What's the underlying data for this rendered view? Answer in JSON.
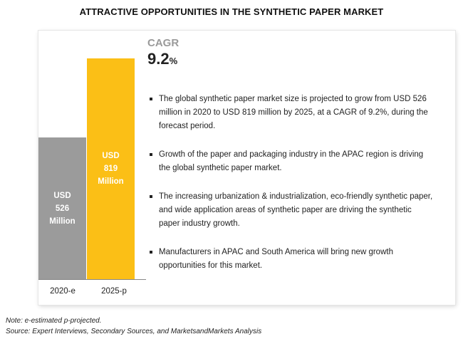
{
  "title": "ATTRACTIVE OPPORTUNITIES IN THE SYNTHETIC PAPER MARKET",
  "colors": {
    "bar_2020": "#9b9b9b",
    "bar_2025": "#fbbf16",
    "cagr_label": "#9a9a9a"
  },
  "cagr": {
    "label": "CAGR",
    "value": "9.2",
    "unit": "%"
  },
  "chart_data": {
    "type": "bar",
    "categories": [
      "2020-e",
      "2025-p"
    ],
    "values": [
      526,
      819
    ],
    "unit": "USD Million",
    "data_labels": [
      [
        "USD",
        "526",
        "Million"
      ],
      [
        "USD",
        "819",
        "Million"
      ]
    ],
    "ylim": [
      0,
      819
    ],
    "grid": false
  },
  "bullets": [
    "The global synthetic paper market size is projected to grow from USD 526 million in 2020 to USD 819 million by 2025, at a CAGR of 9.2%, during the forecast period.",
    "Growth of the paper and packaging industry in the APAC region is driving the global synthetic paper market.",
    "The increasing urbanization & industrialization, eco-friendly synthetic paper, and wide application areas of synthetic paper are driving the synthetic paper industry growth.",
    "Manufacturers in APAC and South America will bring new growth opportunities for this market."
  ],
  "footnotes": {
    "note": "Note: e-estimated p-projected.",
    "source": "Source: Expert Interviews, Secondary Sources, and MarketsandMarkets Analysis"
  }
}
